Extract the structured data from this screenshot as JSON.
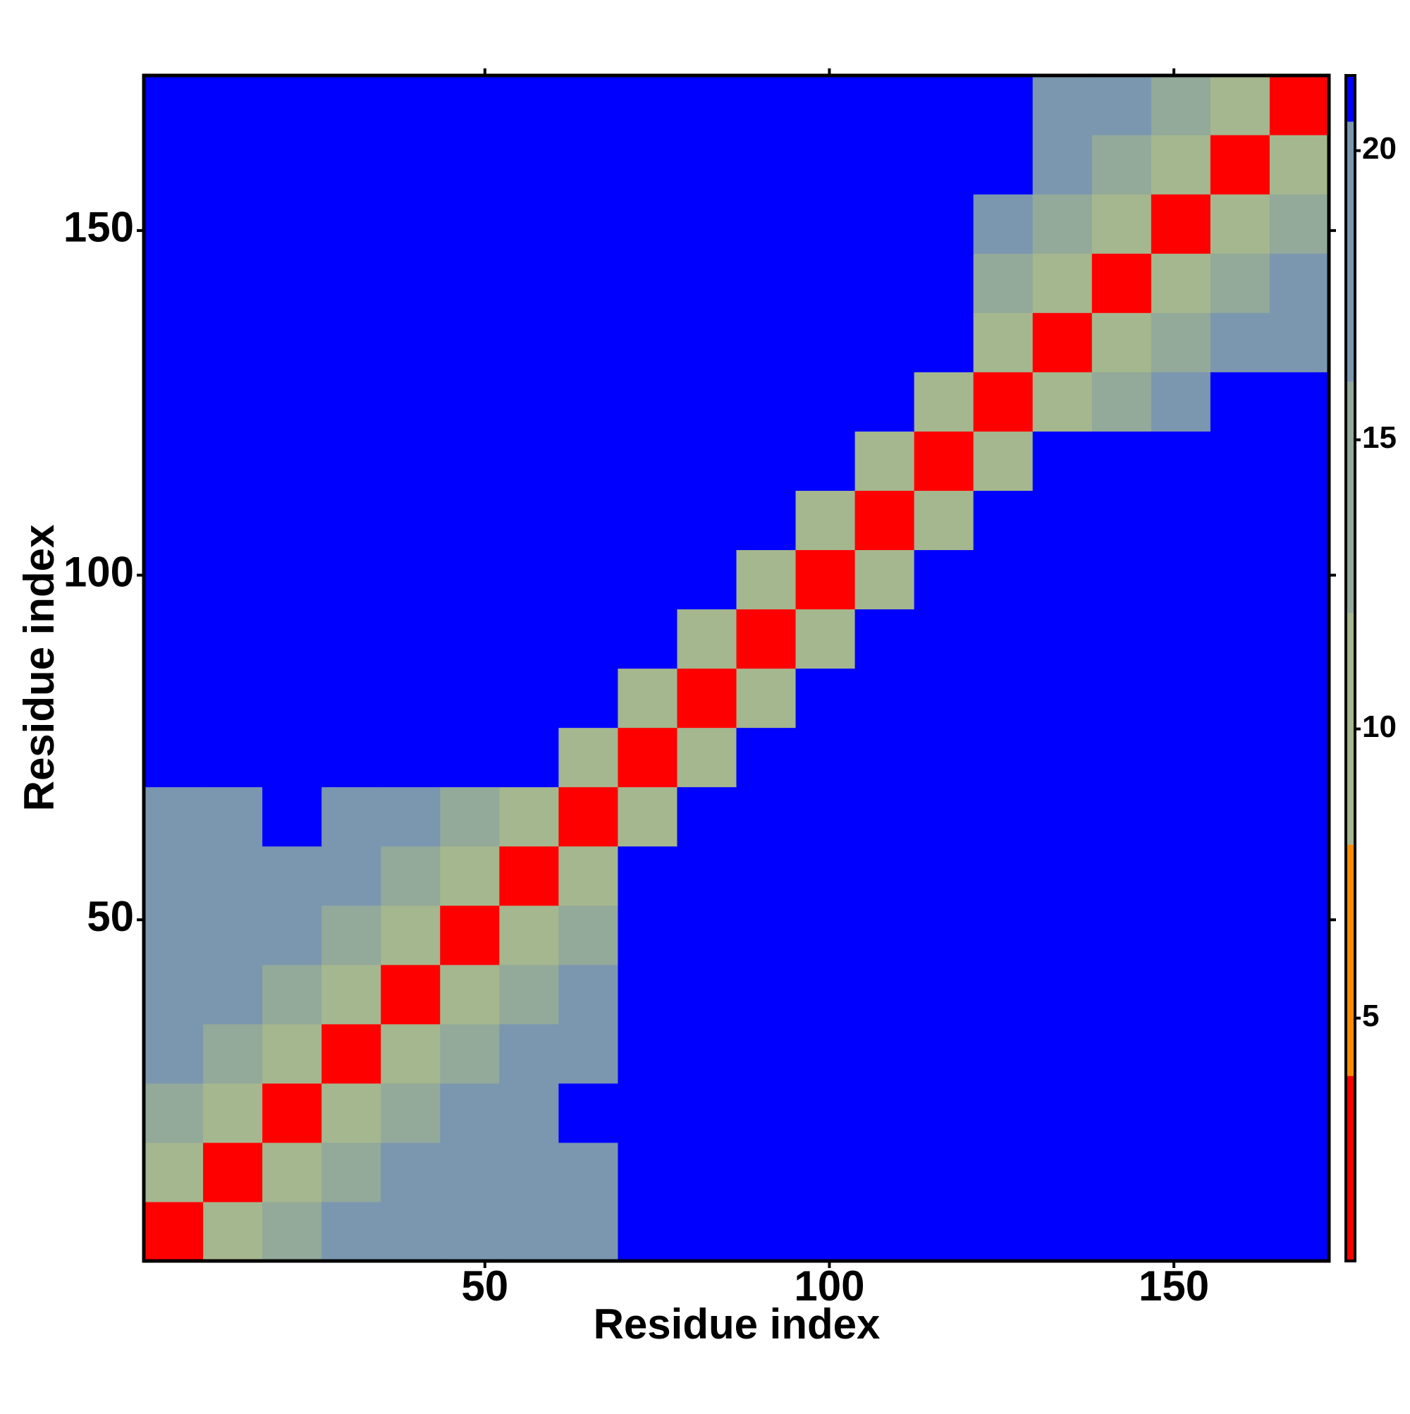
{
  "chart_data": {
    "type": "heatmap",
    "xlabel": "Residue index",
    "ylabel": "Residue index",
    "xlim": [
      0.5,
      172.5
    ],
    "ylim": [
      0.5,
      172.5
    ],
    "xticks": [
      50,
      100,
      150
    ],
    "yticks": [
      50,
      100,
      150
    ],
    "xbins": [
      0.5,
      9.1,
      17.7,
      26.3,
      34.9,
      43.5,
      52.1,
      60.7,
      69.3,
      77.9,
      86.5,
      95.1,
      103.7,
      112.3,
      120.9,
      129.5,
      138.1,
      146.7,
      155.3,
      163.9,
      172.5
    ],
    "ybins": [
      0.5,
      9.1,
      17.7,
      26.3,
      34.9,
      43.5,
      52.1,
      60.7,
      69.3,
      77.9,
      86.5,
      95.1,
      103.7,
      112.3,
      120.9,
      129.5,
      138.1,
      146.7,
      155.3,
      163.9,
      172.5
    ],
    "z": [
      [
        3,
        9,
        13,
        16,
        17,
        18,
        19,
        19,
        25,
        25,
        25,
        25,
        25,
        25,
        25,
        25,
        25,
        25,
        25,
        25
      ],
      [
        9,
        3,
        9,
        13,
        16,
        17,
        18,
        19,
        25,
        25,
        25,
        25,
        25,
        25,
        25,
        25,
        25,
        25,
        25,
        25
      ],
      [
        13,
        9,
        3,
        9,
        13,
        16,
        17,
        25,
        25,
        25,
        25,
        25,
        25,
        25,
        25,
        25,
        25,
        25,
        25,
        25
      ],
      [
        16,
        13,
        9,
        3,
        9,
        13,
        16,
        17,
        25,
        25,
        25,
        25,
        25,
        25,
        25,
        25,
        25,
        25,
        25,
        25
      ],
      [
        17,
        16,
        13,
        9,
        3,
        9,
        13,
        16,
        25,
        25,
        25,
        25,
        25,
        25,
        25,
        25,
        25,
        25,
        25,
        25
      ],
      [
        18,
        17,
        16,
        13,
        9,
        3,
        9,
        13,
        25,
        25,
        25,
        25,
        25,
        25,
        25,
        25,
        25,
        25,
        25,
        25
      ],
      [
        19,
        18,
        17,
        16,
        13,
        9,
        3,
        9,
        25,
        25,
        25,
        25,
        25,
        25,
        25,
        25,
        25,
        25,
        25,
        25
      ],
      [
        19,
        19,
        25,
        17,
        16,
        13,
        9,
        3,
        11,
        25,
        25,
        25,
        25,
        25,
        25,
        25,
        25,
        25,
        25,
        25
      ],
      [
        25,
        25,
        25,
        25,
        25,
        25,
        25,
        11,
        3,
        11,
        25,
        25,
        25,
        25,
        25,
        25,
        25,
        25,
        25,
        25
      ],
      [
        25,
        25,
        25,
        25,
        25,
        25,
        25,
        25,
        11,
        3,
        11,
        25,
        25,
        25,
        25,
        25,
        25,
        25,
        25,
        25
      ],
      [
        25,
        25,
        25,
        25,
        25,
        25,
        25,
        25,
        25,
        11,
        3,
        11,
        25,
        25,
        25,
        25,
        25,
        25,
        25,
        25
      ],
      [
        25,
        25,
        25,
        25,
        25,
        25,
        25,
        25,
        25,
        25,
        11,
        3,
        11,
        25,
        25,
        25,
        25,
        25,
        25,
        25
      ],
      [
        25,
        25,
        25,
        25,
        25,
        25,
        25,
        25,
        25,
        25,
        25,
        11,
        3,
        10,
        25,
        25,
        25,
        25,
        25,
        25
      ],
      [
        25,
        25,
        25,
        25,
        25,
        25,
        25,
        25,
        25,
        25,
        25,
        25,
        10,
        3,
        10,
        25,
        25,
        25,
        25,
        25
      ],
      [
        25,
        25,
        25,
        25,
        25,
        25,
        25,
        25,
        25,
        25,
        25,
        25,
        25,
        10,
        3,
        9,
        13,
        16,
        25,
        25
      ],
      [
        25,
        25,
        25,
        25,
        25,
        25,
        25,
        25,
        25,
        25,
        25,
        25,
        25,
        25,
        9,
        3,
        9,
        13,
        16,
        18
      ],
      [
        25,
        25,
        25,
        25,
        25,
        25,
        25,
        25,
        25,
        25,
        25,
        25,
        25,
        25,
        13,
        9,
        3,
        9,
        13,
        16
      ],
      [
        25,
        25,
        25,
        25,
        25,
        25,
        25,
        25,
        25,
        25,
        25,
        25,
        25,
        25,
        16,
        13,
        9,
        3,
        9,
        13
      ],
      [
        25,
        25,
        25,
        25,
        25,
        25,
        25,
        25,
        25,
        25,
        25,
        25,
        25,
        25,
        25,
        16,
        13,
        9,
        3,
        9
      ],
      [
        25,
        25,
        25,
        25,
        25,
        25,
        25,
        25,
        25,
        25,
        25,
        25,
        25,
        25,
        25,
        18,
        16,
        13,
        9,
        3
      ]
    ],
    "clim": [
      0.8,
      21.3
    ],
    "cticks": [
      5,
      10,
      15,
      20
    ],
    "color_steps": [
      {
        "upto": 4,
        "color": "#ff0000"
      },
      {
        "upto": 8,
        "color": "#ff8c00"
      },
      {
        "upto": 12,
        "color": "#a5b78e"
      },
      {
        "upto": 16,
        "color": "#93a99a"
      },
      {
        "upto": 20.5,
        "color": "#7b97b0"
      }
    ],
    "over_color": "#0000ff"
  }
}
